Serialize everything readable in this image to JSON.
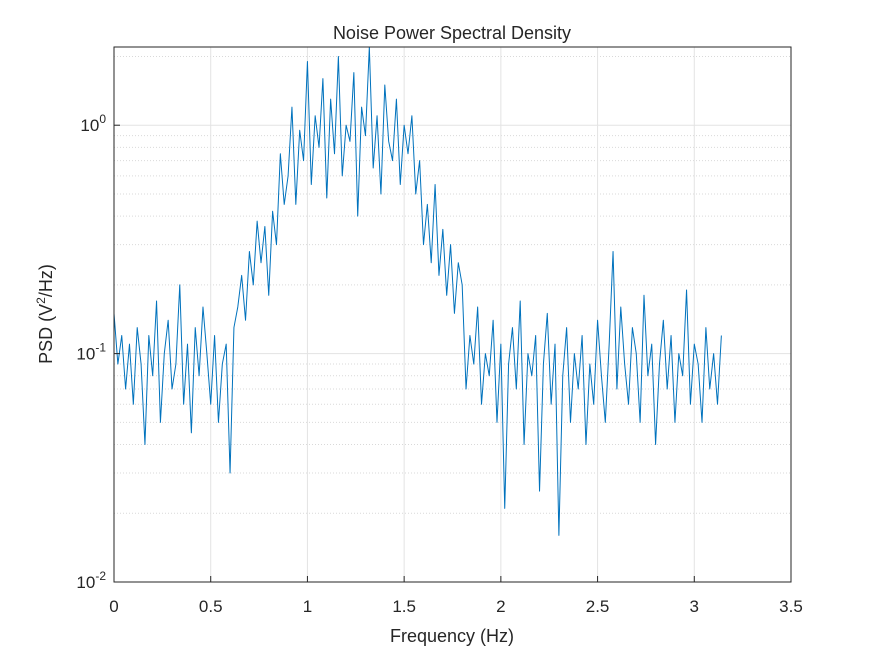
{
  "chart_data": {
    "type": "line",
    "title": "Noise Power Spectral Density",
    "xlabel": "Frequency (Hz)",
    "ylabel": [
      "PSD (V",
      "2",
      "/Hz)"
    ],
    "log_y": true,
    "grid": true,
    "minor_grid": true,
    "color": "#0072BD",
    "xlim": [
      0,
      3.5
    ],
    "xticks": [
      0,
      0.5,
      1,
      1.5,
      2,
      2.5,
      3,
      3.5
    ],
    "ylim": [
      0.01,
      2.2
    ],
    "yticks": [
      {
        "value": 0.01,
        "label": "10",
        "exponent": "-2"
      },
      {
        "value": 0.1,
        "label": "10",
        "exponent": "-1"
      },
      {
        "value": 1,
        "label": "10",
        "exponent": "0"
      }
    ],
    "x": [
      0,
      0.02,
      0.04,
      0.06,
      0.08,
      0.1,
      0.12,
      0.14,
      0.16,
      0.18,
      0.2,
      0.22,
      0.24,
      0.26,
      0.28,
      0.3,
      0.32,
      0.34,
      0.36,
      0.38,
      0.4,
      0.42,
      0.44,
      0.46,
      0.48,
      0.5,
      0.52,
      0.54,
      0.56,
      0.58,
      0.6,
      0.62,
      0.64,
      0.66,
      0.68,
      0.7,
      0.72,
      0.74,
      0.76,
      0.78,
      0.8,
      0.82,
      0.84,
      0.86,
      0.88,
      0.9,
      0.92,
      0.94,
      0.96,
      0.98,
      1,
      1.02,
      1.04,
      1.06,
      1.08,
      1.1,
      1.12,
      1.14,
      1.16,
      1.18,
      1.2,
      1.22,
      1.24,
      1.26,
      1.28,
      1.3,
      1.32,
      1.34,
      1.36,
      1.38,
      1.4,
      1.42,
      1.44,
      1.46,
      1.48,
      1.5,
      1.52,
      1.54,
      1.56,
      1.58,
      1.6,
      1.62,
      1.64,
      1.66,
      1.68,
      1.7,
      1.72,
      1.74,
      1.76,
      1.78,
      1.8,
      1.82,
      1.84,
      1.86,
      1.88,
      1.9,
      1.92,
      1.94,
      1.96,
      1.98,
      2,
      2.02,
      2.04,
      2.06,
      2.08,
      2.1,
      2.12,
      2.14,
      2.16,
      2.18,
      2.2,
      2.22,
      2.24,
      2.26,
      2.28,
      2.3,
      2.32,
      2.34,
      2.36,
      2.38,
      2.4,
      2.42,
      2.44,
      2.46,
      2.48,
      2.5,
      2.52,
      2.54,
      2.56,
      2.58,
      2.6,
      2.62,
      2.64,
      2.66,
      2.68,
      2.7,
      2.72,
      2.74,
      2.76,
      2.78,
      2.8,
      2.82,
      2.84,
      2.86,
      2.88,
      2.9,
      2.92,
      2.94,
      2.96,
      2.98,
      3,
      3.02,
      3.04,
      3.06,
      3.08,
      3.1,
      3.12,
      3.14
    ],
    "values": [
      0.15,
      0.09,
      0.12,
      0.07,
      0.11,
      0.06,
      0.13,
      0.09,
      0.04,
      0.12,
      0.08,
      0.17,
      0.05,
      0.1,
      0.14,
      0.07,
      0.09,
      0.2,
      0.06,
      0.11,
      0.045,
      0.13,
      0.08,
      0.16,
      0.1,
      0.06,
      0.12,
      0.05,
      0.09,
      0.11,
      0.03,
      0.13,
      0.16,
      0.22,
      0.14,
      0.28,
      0.2,
      0.38,
      0.25,
      0.36,
      0.18,
      0.42,
      0.3,
      0.75,
      0.45,
      0.6,
      1.2,
      0.45,
      0.95,
      0.7,
      1.9,
      0.55,
      1.1,
      0.8,
      1.6,
      0.48,
      1.3,
      0.75,
      2.0,
      0.6,
      1.0,
      0.85,
      1.7,
      0.4,
      1.2,
      0.9,
      2.2,
      0.65,
      1.1,
      0.5,
      1.5,
      0.85,
      0.7,
      1.3,
      0.55,
      1.0,
      0.75,
      1.1,
      0.5,
      0.7,
      0.3,
      0.45,
      0.25,
      0.55,
      0.22,
      0.35,
      0.18,
      0.3,
      0.15,
      0.25,
      0.2,
      0.07,
      0.12,
      0.09,
      0.16,
      0.06,
      0.1,
      0.08,
      0.14,
      0.05,
      0.11,
      0.021,
      0.09,
      0.13,
      0.07,
      0.17,
      0.04,
      0.1,
      0.08,
      0.12,
      0.025,
      0.09,
      0.15,
      0.06,
      0.11,
      0.016,
      0.08,
      0.13,
      0.05,
      0.1,
      0.07,
      0.12,
      0.04,
      0.09,
      0.06,
      0.14,
      0.08,
      0.05,
      0.11,
      0.28,
      0.07,
      0.16,
      0.09,
      0.06,
      0.13,
      0.1,
      0.05,
      0.18,
      0.08,
      0.11,
      0.04,
      0.09,
      0.14,
      0.07,
      0.12,
      0.05,
      0.1,
      0.08,
      0.19,
      0.06,
      0.11,
      0.09,
      0.05,
      0.13,
      0.07,
      0.1,
      0.06,
      0.12
    ]
  }
}
